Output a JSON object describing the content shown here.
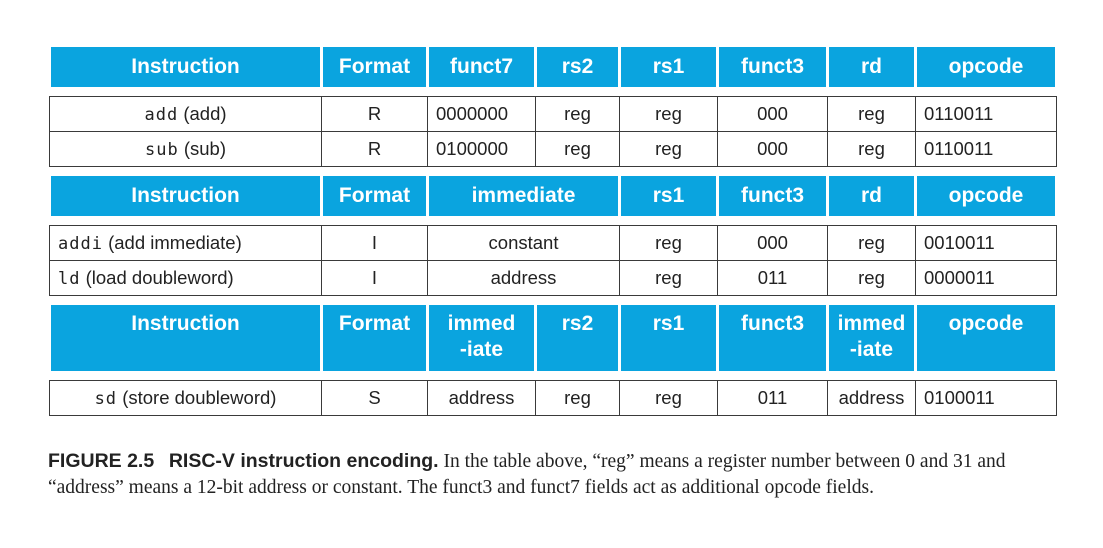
{
  "headers": {
    "r": [
      "Instruction",
      "Format",
      "funct7",
      "rs2",
      "rs1",
      "funct3",
      "rd",
      "opcode"
    ],
    "i": [
      "Instruction",
      "Format",
      "immediate",
      "rs1",
      "funct3",
      "rd",
      "opcode"
    ],
    "s": [
      "Instruction",
      "Format",
      "immed",
      "-iate",
      "rs2",
      "rs1",
      "funct3",
      "immed",
      "-iate",
      "opcode"
    ]
  },
  "rows": {
    "add": {
      "mnemonic": "add",
      "desc": "(add)",
      "format": "R",
      "funct7": "0000000",
      "rs2": "reg",
      "rs1": "reg",
      "funct3": "000",
      "rd": "reg",
      "opcode": "0110011"
    },
    "sub": {
      "mnemonic": "sub",
      "desc": "(sub)",
      "format": "R",
      "funct7": "0100000",
      "rs2": "reg",
      "rs1": "reg",
      "funct3": "000",
      "rd": "reg",
      "opcode": "0110011"
    },
    "addi": {
      "mnemonic": "addi",
      "desc": "(add immediate)",
      "format": "I",
      "immediate": "constant",
      "rs1": "reg",
      "funct3": "000",
      "rd": "reg",
      "opcode": "0010011"
    },
    "ld": {
      "mnemonic": "ld",
      "desc": "(load doubleword)",
      "format": "I",
      "immediate": "address",
      "rs1": "reg",
      "funct3": "011",
      "rd": "reg",
      "opcode": "0000011"
    },
    "sd": {
      "mnemonic": "sd",
      "desc": "(store doubleword)",
      "format": "S",
      "immed_hi": "address",
      "rs2": "reg",
      "rs1": "reg",
      "funct3": "011",
      "immed_lo": "address",
      "opcode": "0100011"
    }
  },
  "caption": {
    "label": "FIGURE 2.5",
    "title": "RISC-V instruction encoding.",
    "body": "In the table above, “reg” means a register number between 0 and 31 and “address” means a 12-bit address or constant. The funct3 and funct7 fields act as additional opcode fields."
  },
  "colors": {
    "header_bg": "#0aa4df",
    "header_text": "#ffffff"
  }
}
